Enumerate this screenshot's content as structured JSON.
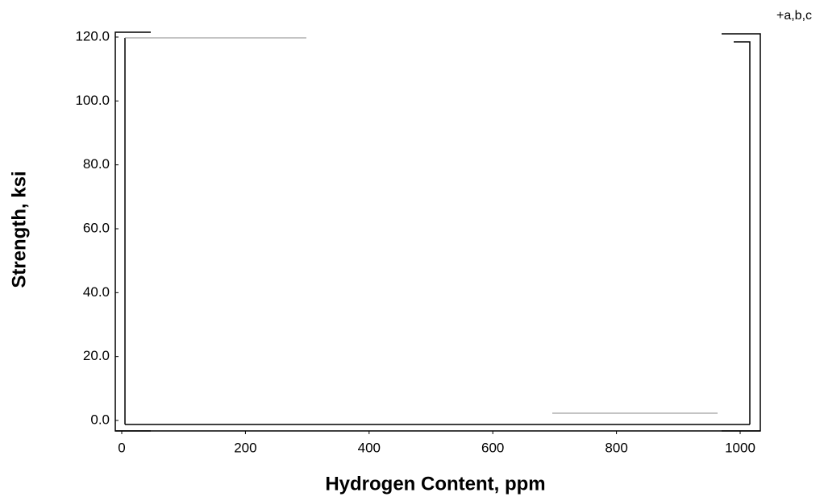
{
  "chart_data": {
    "type": "line",
    "xlabel": "Hydrogen Content, ppm",
    "ylabel": "Strength, ksi",
    "annotation": "+a,b,c",
    "xlim": [
      0,
      1000
    ],
    "xticks": [
      0,
      200,
      400,
      600,
      800,
      1000
    ],
    "ylim": [
      0,
      120
    ],
    "yticks": [
      {
        "value": 0,
        "label": "0.0"
      },
      {
        "value": 20,
        "label": "20.0"
      },
      {
        "value": 40,
        "label": "40.0"
      },
      {
        "value": 60,
        "label": "60.0"
      },
      {
        "value": 80,
        "label": "80.0"
      },
      {
        "value": 100,
        "label": "100.0"
      },
      {
        "value": 120,
        "label": "120.0"
      }
    ],
    "grid": false
  }
}
